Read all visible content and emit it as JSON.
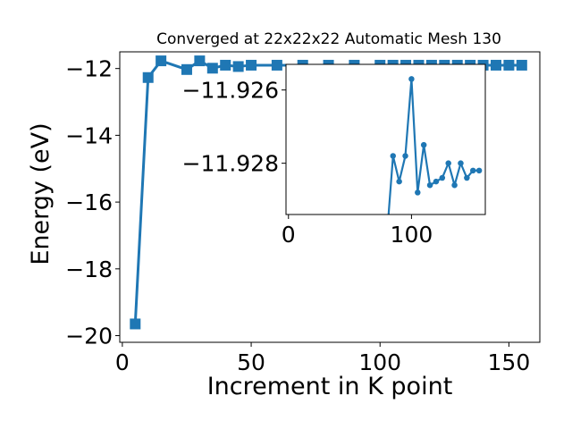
{
  "chart_data": {
    "type": "line",
    "title": "Converged at 22x22x22 Automatic Mesh 130",
    "xlabel": "Increment in K point",
    "ylabel": "Energy (eV)",
    "color": "#1f77b4",
    "grid": false,
    "legend": "none",
    "main": {
      "xlim": [
        -1,
        162
      ],
      "ylim": [
        -20.2,
        -11.5
      ],
      "xticks": [
        0,
        50,
        100,
        150
      ],
      "yticks": [
        -20,
        -18,
        -16,
        -14,
        -12
      ],
      "marker": "square",
      "series": [
        {
          "x": [
            5,
            10,
            15,
            25,
            30,
            35,
            40,
            45,
            50,
            60,
            70,
            80,
            90,
            100,
            105,
            110,
            115,
            120,
            125,
            130,
            135,
            140,
            145,
            150,
            155
          ],
          "y": [
            -19.65,
            -12.27,
            -11.77,
            -12.03,
            -11.77,
            -11.99,
            -11.9,
            -11.94,
            -11.9,
            -11.9,
            -11.9,
            -11.9,
            -11.9,
            -11.9,
            -11.9,
            -11.9,
            -11.9,
            -11.9,
            -11.9,
            -11.9,
            -11.9,
            -11.9,
            -11.9,
            -11.9,
            -11.9
          ]
        }
      ]
    },
    "inset": {
      "xlim": [
        -2,
        160
      ],
      "ylim": [
        -11.9294,
        -11.9253
      ],
      "xticks": [
        0,
        100
      ],
      "yticks": [
        -11.928,
        -11.926
      ],
      "marker": "circle",
      "series": [
        {
          "x": [
            80,
            85,
            90,
            95,
            100,
            105,
            110,
            115,
            120,
            125,
            130,
            135,
            140,
            145,
            150,
            155
          ],
          "y": [
            -11.93,
            -11.9278,
            -11.9285,
            -11.9278,
            -11.9257,
            -11.9288,
            -11.9275,
            -11.9286,
            -11.9285,
            -11.9284,
            -11.928,
            -11.9286,
            -11.928,
            -11.9284,
            -11.9282,
            -11.9282
          ]
        }
      ]
    }
  }
}
